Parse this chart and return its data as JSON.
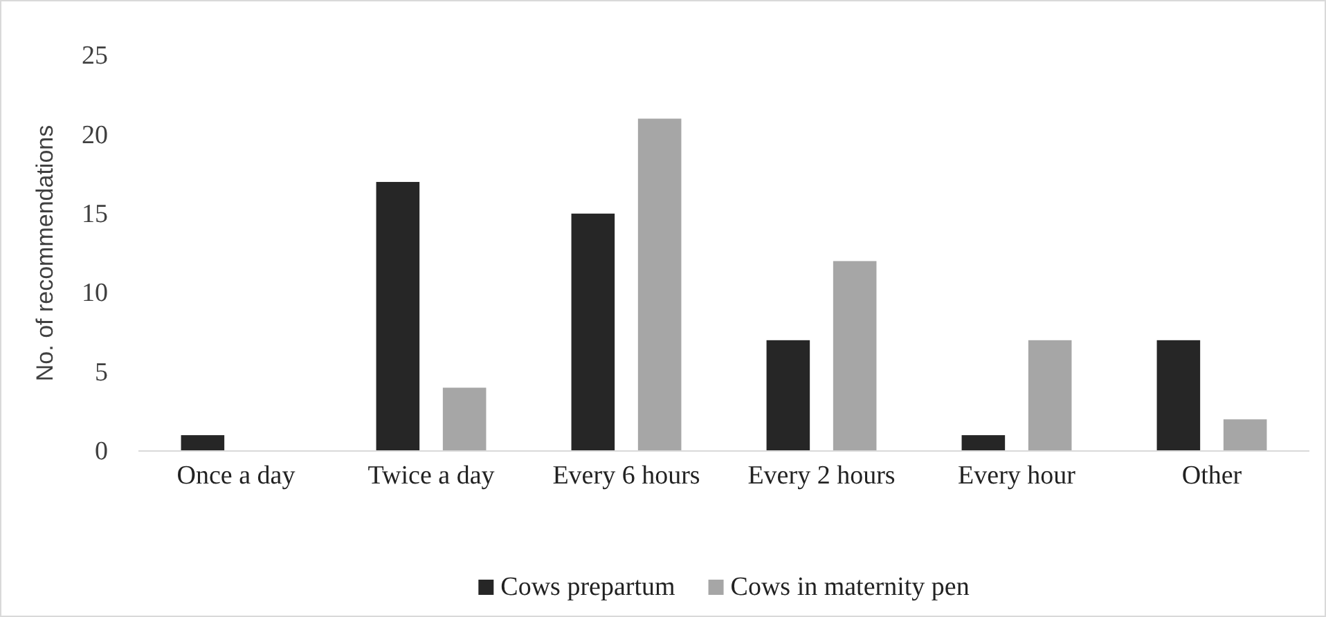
{
  "chart_data": {
    "type": "bar",
    "ylabel": "No. of recommendations",
    "categories": [
      "Once a day",
      "Twice a day",
      "Every 6 hours",
      "Every 2 hours",
      "Every hour",
      "Other"
    ],
    "series": [
      {
        "name": "Cows prepartum",
        "color": "#262626",
        "values": [
          1,
          17,
          15,
          7,
          1,
          7
        ]
      },
      {
        "name": "Cows in maternity pen",
        "color": "#a6a6a6",
        "values": [
          0,
          4,
          21,
          12,
          7,
          2
        ]
      }
    ],
    "ylim": [
      0,
      25
    ],
    "yticks": [
      0,
      5,
      10,
      15,
      20,
      25
    ],
    "grid": false,
    "legend": "bottom"
  }
}
